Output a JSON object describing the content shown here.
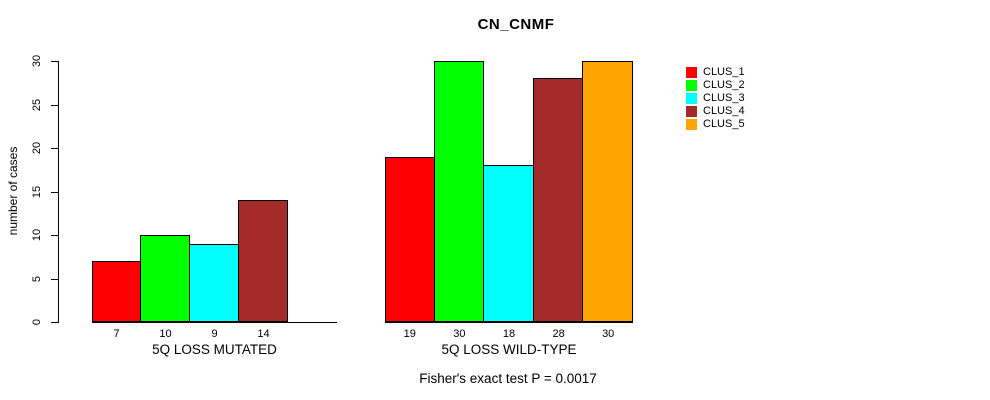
{
  "chart_data": {
    "type": "bar",
    "title": "CN_CNMF",
    "ylabel": "number of cases",
    "xlabel": "",
    "ylim": [
      0,
      30
    ],
    "yticks": [
      0,
      5,
      10,
      15,
      20,
      25,
      30
    ],
    "grid": false,
    "legend_position": "top-right",
    "groups": [
      "5Q LOSS MUTATED",
      "5Q LOSS WILD-TYPE"
    ],
    "series": [
      {
        "name": "CLUS_1",
        "color": "#ff0000",
        "values": [
          7,
          19
        ]
      },
      {
        "name": "CLUS_2",
        "color": "#00ff00",
        "values": [
          10,
          30
        ]
      },
      {
        "name": "CLUS_3",
        "color": "#00ffff",
        "values": [
          9,
          18
        ]
      },
      {
        "name": "CLUS_4",
        "color": "#a52a2a",
        "values": [
          14,
          28
        ]
      },
      {
        "name": "CLUS_5",
        "color": "#ffa500",
        "values": [
          0,
          30
        ]
      }
    ],
    "bar_labels": [
      [
        "7",
        "10",
        "9",
        "14",
        ""
      ],
      [
        "19",
        "30",
        "18",
        "28",
        "30"
      ]
    ],
    "annotation": "Fisher's exact test P = 0.0017"
  }
}
